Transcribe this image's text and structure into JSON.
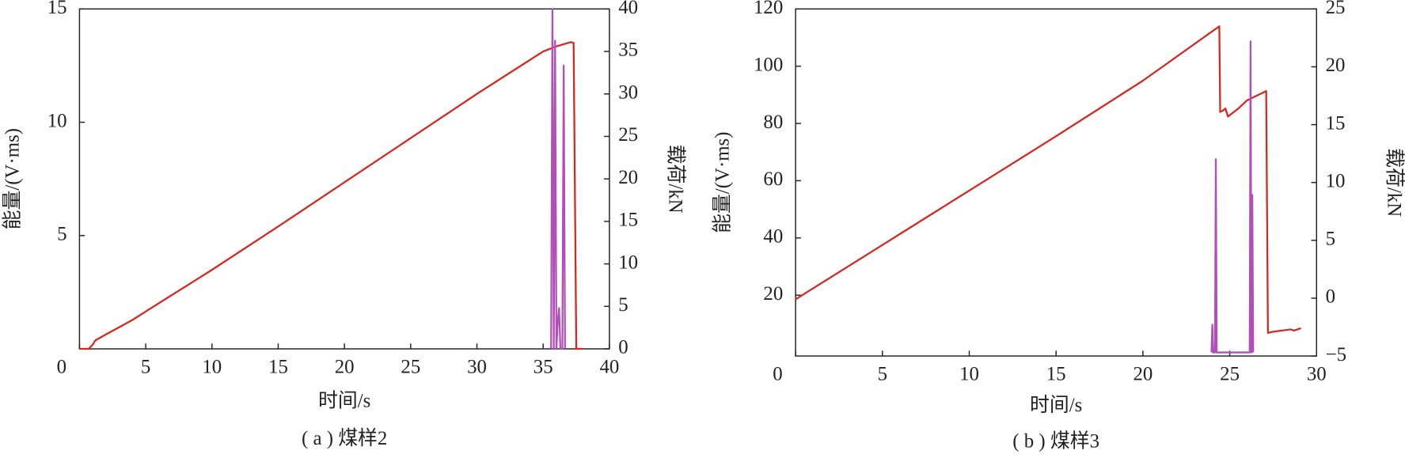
{
  "chart_data": [
    {
      "type": "line",
      "caption": "( a ) 煤样2",
      "xlabel": "时间/s",
      "ylabel": "能量/(V·ms)",
      "y2label": "载荷/kN",
      "xlim": [
        0,
        40
      ],
      "xticks": [
        0,
        5,
        10,
        15,
        20,
        25,
        30,
        35,
        40
      ],
      "ylim": [
        0,
        15
      ],
      "yticks": [
        5,
        10,
        15
      ],
      "y2lim": [
        0,
        40
      ],
      "y2ticks": [
        0,
        5,
        10,
        15,
        20,
        25,
        30,
        35,
        40
      ],
      "series": [
        {
          "color": "#d7261e",
          "axis": "y2",
          "x": [
            0,
            0.7,
            1,
            1.2,
            2,
            4,
            5,
            10,
            15,
            20,
            25,
            30,
            35,
            36,
            37.1,
            37.3,
            37.5,
            38
          ],
          "values": [
            0,
            0,
            0.5,
            1.0,
            1.7,
            3.4,
            4.4,
            9.3,
            14.4,
            19.6,
            24.8,
            30,
            35,
            35.6,
            36.1,
            36.0,
            0,
            0
          ]
        },
        {
          "color": "#b04fb5",
          "axis": "y",
          "x": [
            35.6,
            35.7,
            35.8,
            35.9,
            36.0,
            36.1,
            36.2,
            36.3,
            36.45,
            36.55,
            36.65
          ],
          "values": [
            0,
            15,
            0,
            13.6,
            0,
            1.2,
            1.8,
            0,
            0,
            12.5,
            0
          ]
        }
      ]
    },
    {
      "type": "line",
      "caption": "( b ) 煤样3",
      "xlabel": "时间/s",
      "ylabel": "能量/(V·ms)",
      "y2label": "载荷/kN",
      "xlim": [
        0,
        30
      ],
      "xticks": [
        0,
        5,
        10,
        15,
        20,
        25,
        30
      ],
      "ylim": [
        -1.25,
        120
      ],
      "yticks": [
        20,
        40,
        60,
        80,
        100,
        120
      ],
      "y2lim": [
        -5,
        25
      ],
      "y2ticks": [
        {
          "value": -5,
          "label": "−5"
        },
        0,
        5,
        10,
        15,
        20,
        25
      ],
      "series": [
        {
          "color": "#d7261e",
          "axis": "y2",
          "x": [
            0,
            5,
            10,
            15,
            20,
            24.4,
            24.45,
            24.6,
            24.75,
            24.9,
            25.5,
            26.0,
            27.1,
            27.2,
            27.5,
            28.5,
            28.7,
            29.1
          ],
          "values": [
            -0.1,
            4.6,
            9.3,
            14.0,
            18.8,
            23.5,
            16.1,
            16.2,
            16.4,
            15.7,
            16.4,
            17.1,
            17.9,
            -3.0,
            -2.9,
            -2.7,
            -2.8,
            -2.6
          ]
        },
        {
          "color": "#b04fb5",
          "axis": "y",
          "x": [
            23.95,
            24.0,
            24.05,
            24.15,
            24.2,
            24.25,
            26.15,
            26.2,
            26.25,
            26.3,
            26.35
          ],
          "values": [
            0,
            9.7,
            0,
            0,
            67.5,
            0,
            0,
            108.7,
            0,
            55,
            0
          ]
        }
      ]
    }
  ]
}
